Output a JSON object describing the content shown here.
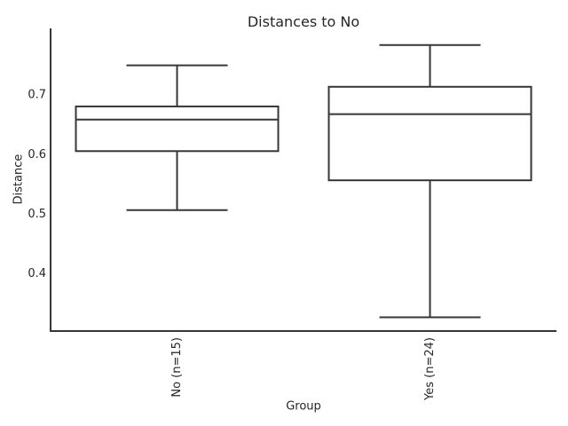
{
  "chart_data": {
    "type": "box",
    "title": "Distances to No",
    "xlabel": "Group",
    "ylabel": "Distance",
    "categories": [
      "No (n=15)",
      "Yes (n=24)"
    ],
    "yticks": [
      0.4,
      0.5,
      0.6,
      0.7
    ],
    "ytick_labels": [
      "0.4",
      "0.5",
      "0.6",
      "0.7"
    ],
    "ylim": [
      0.304,
      0.812
    ],
    "grid": false,
    "legend": false,
    "xtick_rotation": 90,
    "series": [
      {
        "name": "No",
        "label": "No (n=15)",
        "n": 15,
        "whisker_low": 0.507,
        "q1": 0.606,
        "median": 0.659,
        "q3": 0.681,
        "whisker_high": 0.75,
        "outliers": []
      },
      {
        "name": "Yes",
        "label": "Yes (n=24)",
        "n": 24,
        "whisker_low": 0.327,
        "q1": 0.557,
        "median": 0.668,
        "q3": 0.714,
        "whisker_high": 0.784,
        "outliers": []
      }
    ],
    "colors": {
      "line": "#363636",
      "text": "#262626",
      "background": "#ffffff",
      "box_fill": "#ffffff"
    }
  }
}
